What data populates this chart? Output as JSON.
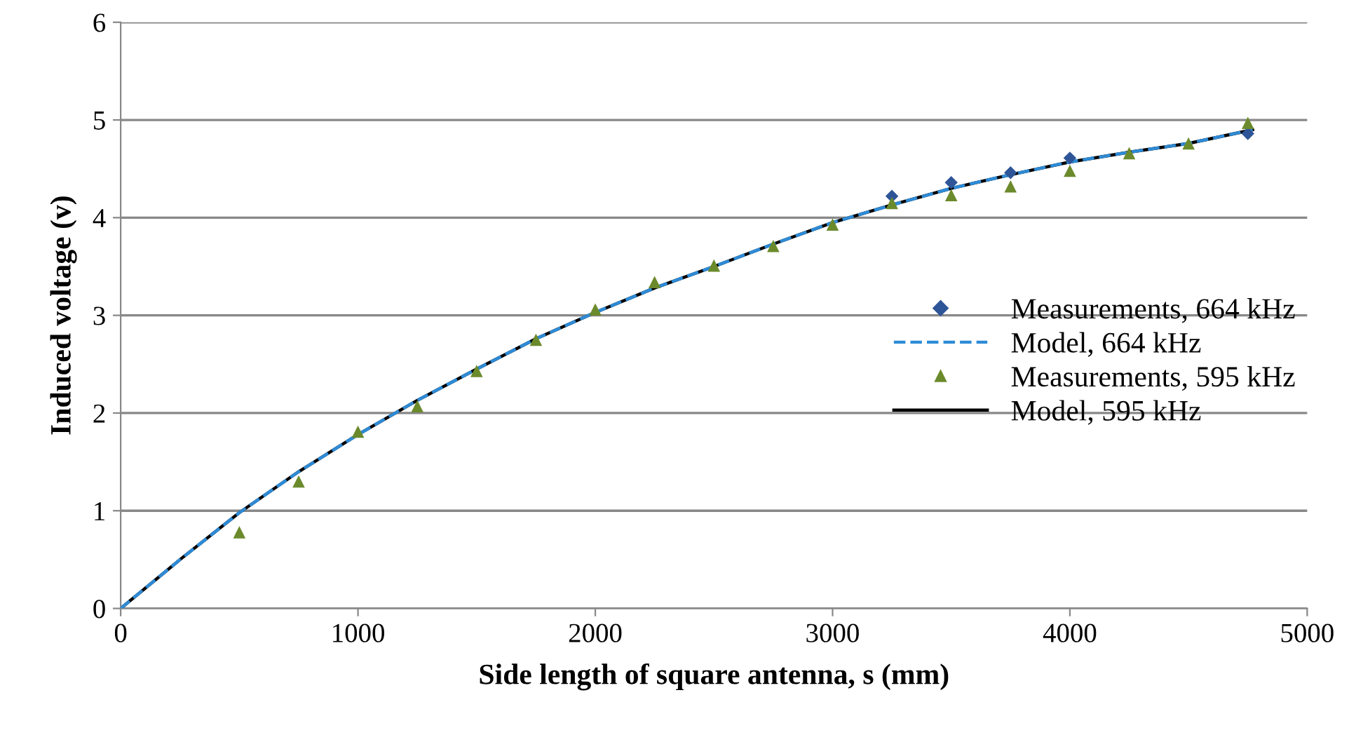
{
  "chart_data": {
    "type": "line",
    "xlabel": "Side length of square antenna, s (mm)",
    "ylabel": "Induced voltage (v)",
    "xlim": [
      0,
      5000
    ],
    "xticks": [
      0,
      1000,
      2000,
      3000,
      4000,
      5000
    ],
    "ylim": [
      0,
      6
    ],
    "yticks": [
      0,
      1,
      2,
      3,
      4,
      5,
      6
    ],
    "grid": "y",
    "legend": "right",
    "series": [
      {
        "name": "Measurements, 664 kHz",
        "type": "scatter",
        "marker": "diamond",
        "color": "#2e5597",
        "x": [
          3250,
          3500,
          3750,
          4000,
          4750
        ],
        "values": [
          4.22,
          4.36,
          4.46,
          4.61,
          4.86
        ]
      },
      {
        "name": "Model, 664 kHz",
        "line_style": "dashed",
        "marker": "none",
        "color": "#2e8bd6",
        "x": [
          0,
          250,
          500,
          750,
          1000,
          1250,
          1500,
          1750,
          2000,
          2250,
          2500,
          2750,
          3000,
          3250,
          3500,
          3750,
          4000,
          4250,
          4500,
          4770
        ],
        "values": [
          0,
          0.5,
          0.98,
          1.4,
          1.78,
          2.13,
          2.45,
          2.76,
          3.03,
          3.28,
          3.5,
          3.73,
          3.95,
          4.13,
          4.3,
          4.44,
          4.57,
          4.67,
          4.76,
          4.9
        ]
      },
      {
        "name": "Measurements, 595 kHz",
        "type": "scatter",
        "marker": "triangle",
        "color": "#6b8a2c",
        "x": [
          500,
          750,
          1000,
          1250,
          1500,
          1750,
          2000,
          2250,
          2500,
          2750,
          3000,
          3250,
          3500,
          3750,
          4000,
          4250,
          4500,
          4750
        ],
        "values": [
          0.78,
          1.3,
          1.81,
          2.07,
          2.43,
          2.75,
          3.06,
          3.34,
          3.51,
          3.71,
          3.93,
          4.15,
          4.23,
          4.32,
          4.48,
          4.66,
          4.76,
          4.97
        ]
      },
      {
        "name": "Model, 595 kHz",
        "line_style": "solid",
        "marker": "none",
        "color": "#000000",
        "x": [
          0,
          250,
          500,
          750,
          1000,
          1250,
          1500,
          1750,
          2000,
          2250,
          2500,
          2750,
          3000,
          3250,
          3500,
          3750,
          4000,
          4250,
          4500,
          4770
        ],
        "values": [
          0,
          0.5,
          0.98,
          1.4,
          1.78,
          2.13,
          2.45,
          2.76,
          3.03,
          3.28,
          3.5,
          3.73,
          3.95,
          4.13,
          4.3,
          4.44,
          4.57,
          4.67,
          4.76,
          4.9
        ]
      }
    ]
  }
}
